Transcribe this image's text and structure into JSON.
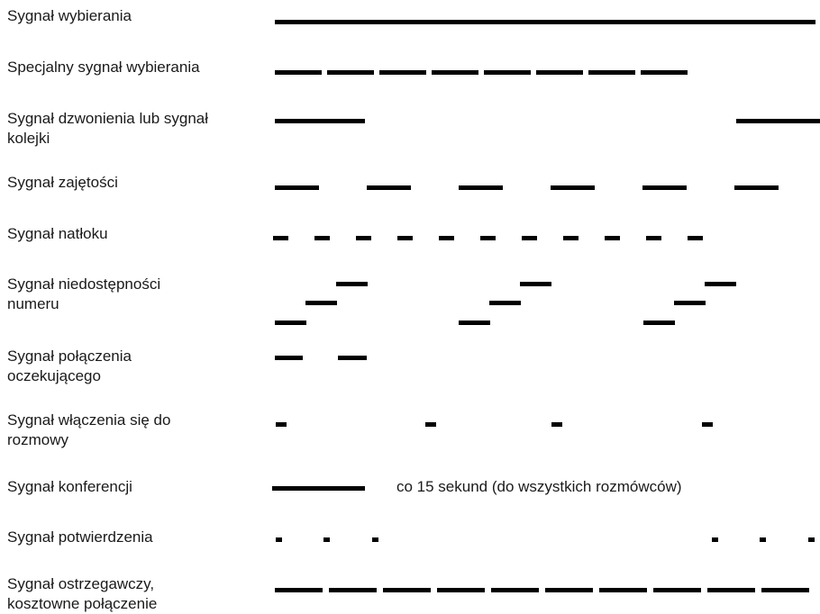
{
  "signals": [
    {
      "id": "dial-tone",
      "label_lines": [
        "Sygnał wybierania"
      ]
    },
    {
      "id": "special-dial-tone",
      "label_lines": [
        "Specjalny sygnał wybierania"
      ]
    },
    {
      "id": "ringing-tone",
      "label_lines": [
        "Sygnał dzwonienia lub sygnał",
        "kolejki"
      ]
    },
    {
      "id": "busy-tone",
      "label_lines": [
        "Sygnał zajętości"
      ]
    },
    {
      "id": "congestion-tone",
      "label_lines": [
        "Sygnał natłoku"
      ]
    },
    {
      "id": "number-unavailable-tone",
      "label_lines": [
        "Sygnał niedostępności",
        "numeru"
      ]
    },
    {
      "id": "call-waiting-tone",
      "label_lines": [
        "Sygnał połączenia",
        "oczekującego"
      ]
    },
    {
      "id": "intrusion-tone",
      "label_lines": [
        "Sygnał włączenia się do",
        "rozmowy"
      ]
    },
    {
      "id": "conference-tone",
      "label_lines": [
        "Sygnał konferencji"
      ],
      "note": "co 15 sekund (do wszystkich rozmówców)"
    },
    {
      "id": "confirmation-tone",
      "label_lines": [
        "Sygnał potwierdzenia"
      ]
    },
    {
      "id": "expensive-call-warning-tone",
      "label_lines": [
        "Sygnał ostrzegawczy,",
        "kosztowne połączenie"
      ]
    }
  ]
}
